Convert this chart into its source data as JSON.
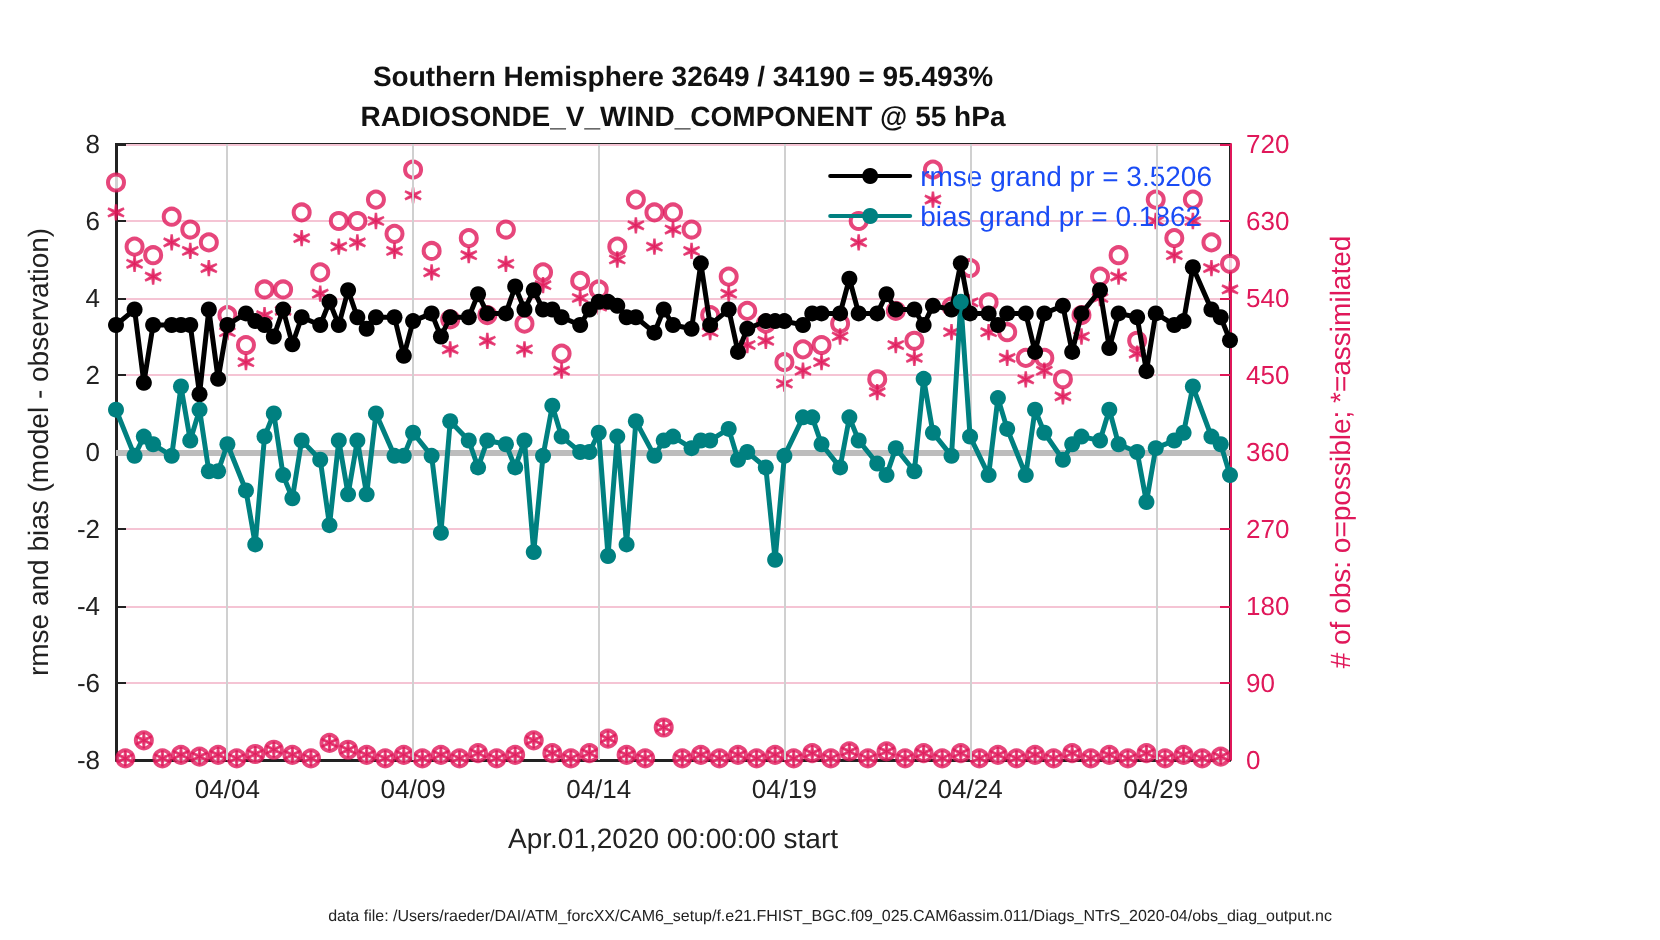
{
  "chart_data": {
    "type": "line",
    "title": "Southern Hemisphere 32649 / 34190 = 95.493%",
    "subtitle": "RADIOSONDE_V_WIND_COMPONENT @ 55 hPa",
    "xlabel": "Apr.01,2020 00:00:00 start",
    "ylabel": "rmse and bias (model - observation)",
    "y2label": "# of obs: o=possible; *=assimilated",
    "annotations": [
      "data file: /Users/raeder/DAI/ATM_forcXX/CAM6_setup/f.e21.FHIST_BGC.f09_025.CAM6assim.011/Diags_NTrS_2020-04/obs_diag_output.nc"
    ],
    "x": [
      "2020-04-01T00:00",
      "2020-04-01T06:00",
      "2020-04-01T12:00",
      "2020-04-01T18:00",
      "2020-04-02T00:00",
      "2020-04-02T06:00",
      "2020-04-02T12:00",
      "2020-04-02T18:00",
      "2020-04-03T00:00",
      "2020-04-03T06:00",
      "2020-04-03T12:00",
      "2020-04-03T18:00",
      "2020-04-04T00:00",
      "2020-04-04T06:00",
      "2020-04-04T12:00",
      "2020-04-04T18:00",
      "2020-04-05T00:00",
      "2020-04-05T06:00",
      "2020-04-05T12:00",
      "2020-04-05T18:00",
      "2020-04-06T00:00",
      "2020-04-06T06:00",
      "2020-04-06T12:00",
      "2020-04-06T18:00",
      "2020-04-07T00:00",
      "2020-04-07T06:00",
      "2020-04-07T12:00",
      "2020-04-07T18:00",
      "2020-04-08T00:00",
      "2020-04-08T06:00",
      "2020-04-08T12:00",
      "2020-04-08T18:00",
      "2020-04-09T00:00",
      "2020-04-09T06:00",
      "2020-04-09T12:00",
      "2020-04-09T18:00",
      "2020-04-10T00:00",
      "2020-04-10T06:00",
      "2020-04-10T12:00",
      "2020-04-10T18:00",
      "2020-04-11T00:00",
      "2020-04-11T06:00",
      "2020-04-11T12:00",
      "2020-04-11T18:00",
      "2020-04-12T00:00",
      "2020-04-12T06:00",
      "2020-04-12T12:00",
      "2020-04-12T18:00",
      "2020-04-13T00:00",
      "2020-04-13T06:00",
      "2020-04-13T12:00",
      "2020-04-13T18:00",
      "2020-04-14T00:00",
      "2020-04-14T06:00",
      "2020-04-14T12:00",
      "2020-04-14T18:00",
      "2020-04-15T00:00",
      "2020-04-15T06:00",
      "2020-04-15T12:00",
      "2020-04-15T18:00",
      "2020-04-16T00:00",
      "2020-04-16T06:00",
      "2020-04-16T12:00",
      "2020-04-16T18:00",
      "2020-04-17T00:00",
      "2020-04-17T06:00",
      "2020-04-17T12:00",
      "2020-04-17T18:00",
      "2020-04-18T00:00",
      "2020-04-18T06:00",
      "2020-04-18T12:00",
      "2020-04-18T18:00",
      "2020-04-19T00:00",
      "2020-04-19T06:00",
      "2020-04-19T12:00",
      "2020-04-19T18:00",
      "2020-04-20T00:00",
      "2020-04-20T06:00",
      "2020-04-20T12:00",
      "2020-04-20T18:00",
      "2020-04-21T00:00",
      "2020-04-21T06:00",
      "2020-04-21T12:00",
      "2020-04-21T18:00",
      "2020-04-22T00:00",
      "2020-04-22T06:00",
      "2020-04-22T12:00",
      "2020-04-22T18:00",
      "2020-04-23T00:00",
      "2020-04-23T06:00",
      "2020-04-23T12:00",
      "2020-04-23T18:00",
      "2020-04-24T00:00",
      "2020-04-24T06:00",
      "2020-04-24T12:00",
      "2020-04-24T18:00",
      "2020-04-25T00:00",
      "2020-04-25T06:00",
      "2020-04-25T12:00",
      "2020-04-25T18:00",
      "2020-04-26T00:00",
      "2020-04-26T06:00",
      "2020-04-26T12:00",
      "2020-04-26T18:00",
      "2020-04-27T00:00",
      "2020-04-27T06:00",
      "2020-04-27T12:00",
      "2020-04-27T18:00",
      "2020-04-28T00:00",
      "2020-04-28T06:00",
      "2020-04-28T12:00",
      "2020-04-28T18:00",
      "2020-04-29T00:00",
      "2020-04-29T06:00",
      "2020-04-29T12:00",
      "2020-04-29T18:00",
      "2020-04-30T00:00",
      "2020-04-30T06:00",
      "2020-04-30T12:00",
      "2020-04-30T18:00",
      "2020-05-01T00:00"
    ],
    "series": [
      {
        "type": "scatter",
        "axis": "y2",
        "color": "#e0185a",
        "marker": "circle",
        "values": [
          675,
          2,
          600,
          23,
          590,
          2,
          635,
          6,
          620,
          4,
          605,
          6,
          520,
          2,
          485,
          7,
          550,
          12,
          550,
          6,
          640,
          2,
          570,
          20,
          630,
          12,
          630,
          6,
          655,
          2,
          615,
          6,
          690,
          2,
          595,
          6,
          515,
          2,
          610,
          8,
          520,
          2,
          620,
          6,
          510,
          23,
          570,
          8,
          475,
          2,
          560,
          8,
          550,
          25,
          600,
          6,
          655,
          2,
          640,
          38,
          640,
          2,
          620,
          6,
          520,
          2,
          565,
          6,
          525,
          2,
          510,
          6,
          465,
          2,
          480,
          8,
          485,
          2,
          510,
          10,
          630,
          2,
          445,
          10,
          525,
          2,
          490,
          8,
          690,
          2,
          530,
          8,
          575,
          2,
          535,
          6,
          500,
          2,
          470,
          6,
          470,
          2,
          445,
          8,
          520,
          2,
          565,
          6,
          590,
          2,
          490,
          8,
          655,
          2,
          610,
          6,
          655,
          2,
          605,
          4,
          580
        ]
      },
      {
        "type": "scatter",
        "axis": "y2",
        "color": "#e0185a",
        "marker": "cross",
        "values": [
          640,
          2,
          580,
          23,
          565,
          2,
          605,
          6,
          595,
          4,
          575,
          6,
          500,
          2,
          465,
          7,
          520,
          12,
          525,
          6,
          610,
          2,
          545,
          20,
          600,
          12,
          605,
          6,
          630,
          2,
          595,
          6,
          660,
          2,
          570,
          6,
          480,
          2,
          590,
          8,
          490,
          2,
          580,
          6,
          480,
          23,
          555,
          8,
          455,
          2,
          540,
          8,
          530,
          25,
          585,
          6,
          625,
          2,
          600,
          38,
          620,
          2,
          595,
          6,
          500,
          2,
          545,
          6,
          485,
          2,
          490,
          6,
          440,
          2,
          455,
          8,
          465,
          2,
          495,
          10,
          605,
          2,
          430,
          10,
          485,
          2,
          470,
          8,
          655,
          2,
          500,
          8,
          535,
          2,
          500,
          6,
          470,
          2,
          445,
          6,
          455,
          2,
          425,
          8,
          495,
          2,
          540,
          6,
          565,
          2,
          475,
          8,
          630,
          2,
          590,
          6,
          630,
          2,
          575,
          4,
          550
        ]
      },
      {
        "name": "rmse grand pr = 3.5206",
        "color": "#000000",
        "marker": "circle",
        "values": [
          3.3,
          null,
          3.7,
          1.8,
          3.3,
          null,
          3.3,
          3.3,
          3.3,
          1.5,
          3.7,
          1.9,
          3.3,
          null,
          3.6,
          3.4,
          3.3,
          3.0,
          3.7,
          2.8,
          3.5,
          null,
          3.3,
          3.9,
          3.3,
          4.2,
          3.5,
          3.2,
          3.5,
          null,
          3.5,
          2.5,
          3.4,
          null,
          3.6,
          3.0,
          3.5,
          null,
          3.5,
          4.1,
          3.6,
          null,
          3.6,
          4.3,
          3.7,
          4.2,
          3.7,
          3.7,
          3.5,
          null,
          3.3,
          3.7,
          3.9,
          3.9,
          3.8,
          3.5,
          3.5,
          null,
          3.1,
          3.7,
          3.3,
          null,
          3.2,
          4.9,
          3.3,
          null,
          3.7,
          2.6,
          3.2,
          null,
          3.4,
          3.4,
          3.4,
          null,
          3.3,
          3.6,
          3.6,
          null,
          3.6,
          4.5,
          3.6,
          null,
          3.6,
          4.1,
          3.7,
          null,
          3.7,
          3.3,
          3.8,
          null,
          3.7,
          4.9,
          3.6,
          null,
          3.6,
          3.3,
          3.6,
          null,
          3.6,
          2.6,
          3.6,
          null,
          3.8,
          2.6,
          3.6,
          null,
          4.2,
          2.7,
          3.6,
          null,
          3.5,
          2.1,
          3.6,
          null,
          3.3,
          3.4,
          4.8,
          null,
          3.7,
          3.5,
          2.9
        ]
      },
      {
        "name": "bias grand pr = 0.1862",
        "color": "#008080",
        "marker": "circle",
        "values": [
          1.1,
          null,
          -0.1,
          0.4,
          0.2,
          null,
          -0.1,
          1.7,
          0.3,
          1.1,
          -0.5,
          -0.5,
          0.2,
          null,
          -1.0,
          -2.4,
          0.4,
          1.0,
          -0.6,
          -1.2,
          0.3,
          null,
          -0.2,
          -1.9,
          0.3,
          -1.1,
          0.3,
          -1.1,
          1.0,
          null,
          -0.1,
          -0.1,
          0.5,
          null,
          -0.1,
          -2.1,
          0.8,
          null,
          0.3,
          -0.4,
          0.3,
          null,
          0.2,
          -0.4,
          0.3,
          -2.6,
          -0.1,
          1.2,
          0.4,
          null,
          0.0,
          0.0,
          0.5,
          -2.7,
          0.4,
          -2.4,
          0.8,
          null,
          -0.1,
          0.3,
          0.4,
          null,
          0.1,
          0.3,
          0.3,
          null,
          0.6,
          -0.2,
          0.0,
          null,
          -0.4,
          -2.8,
          -0.1,
          null,
          0.9,
          0.9,
          0.2,
          null,
          -0.4,
          0.9,
          0.3,
          null,
          -0.3,
          -0.6,
          0.1,
          null,
          -0.5,
          1.9,
          0.5,
          null,
          -0.1,
          3.9,
          0.4,
          null,
          -0.6,
          1.4,
          0.6,
          null,
          -0.6,
          1.1,
          0.5,
          null,
          -0.2,
          0.2,
          0.4,
          null,
          0.3,
          1.1,
          0.2,
          null,
          0.0,
          -1.3,
          0.1,
          null,
          0.3,
          0.5,
          1.7,
          null,
          0.4,
          0.2,
          -0.6
        ]
      }
    ],
    "xlim": [
      "2020-04-01T00:00",
      "2020-05-01T00:00"
    ],
    "xticks": [
      {
        "value": "2020-04-04",
        "label": "04/04"
      },
      {
        "value": "2020-04-09",
        "label": "04/09"
      },
      {
        "value": "2020-04-14",
        "label": "04/14"
      },
      {
        "value": "2020-04-19",
        "label": "04/19"
      },
      {
        "value": "2020-04-24",
        "label": "04/24"
      },
      {
        "value": "2020-04-29",
        "label": "04/29"
      }
    ],
    "ylim": [
      -8,
      8
    ],
    "yticks": [
      -8,
      -6,
      -4,
      -2,
      0,
      2,
      4,
      6,
      8
    ],
    "y2lim": [
      0,
      720
    ],
    "y2ticks": [
      0,
      90,
      180,
      270,
      360,
      450,
      540,
      630,
      720
    ],
    "ref_lines": [
      {
        "axis": "y",
        "value": 0,
        "color": "#bdbdbd"
      }
    ],
    "grid": true,
    "legend": "top right"
  }
}
